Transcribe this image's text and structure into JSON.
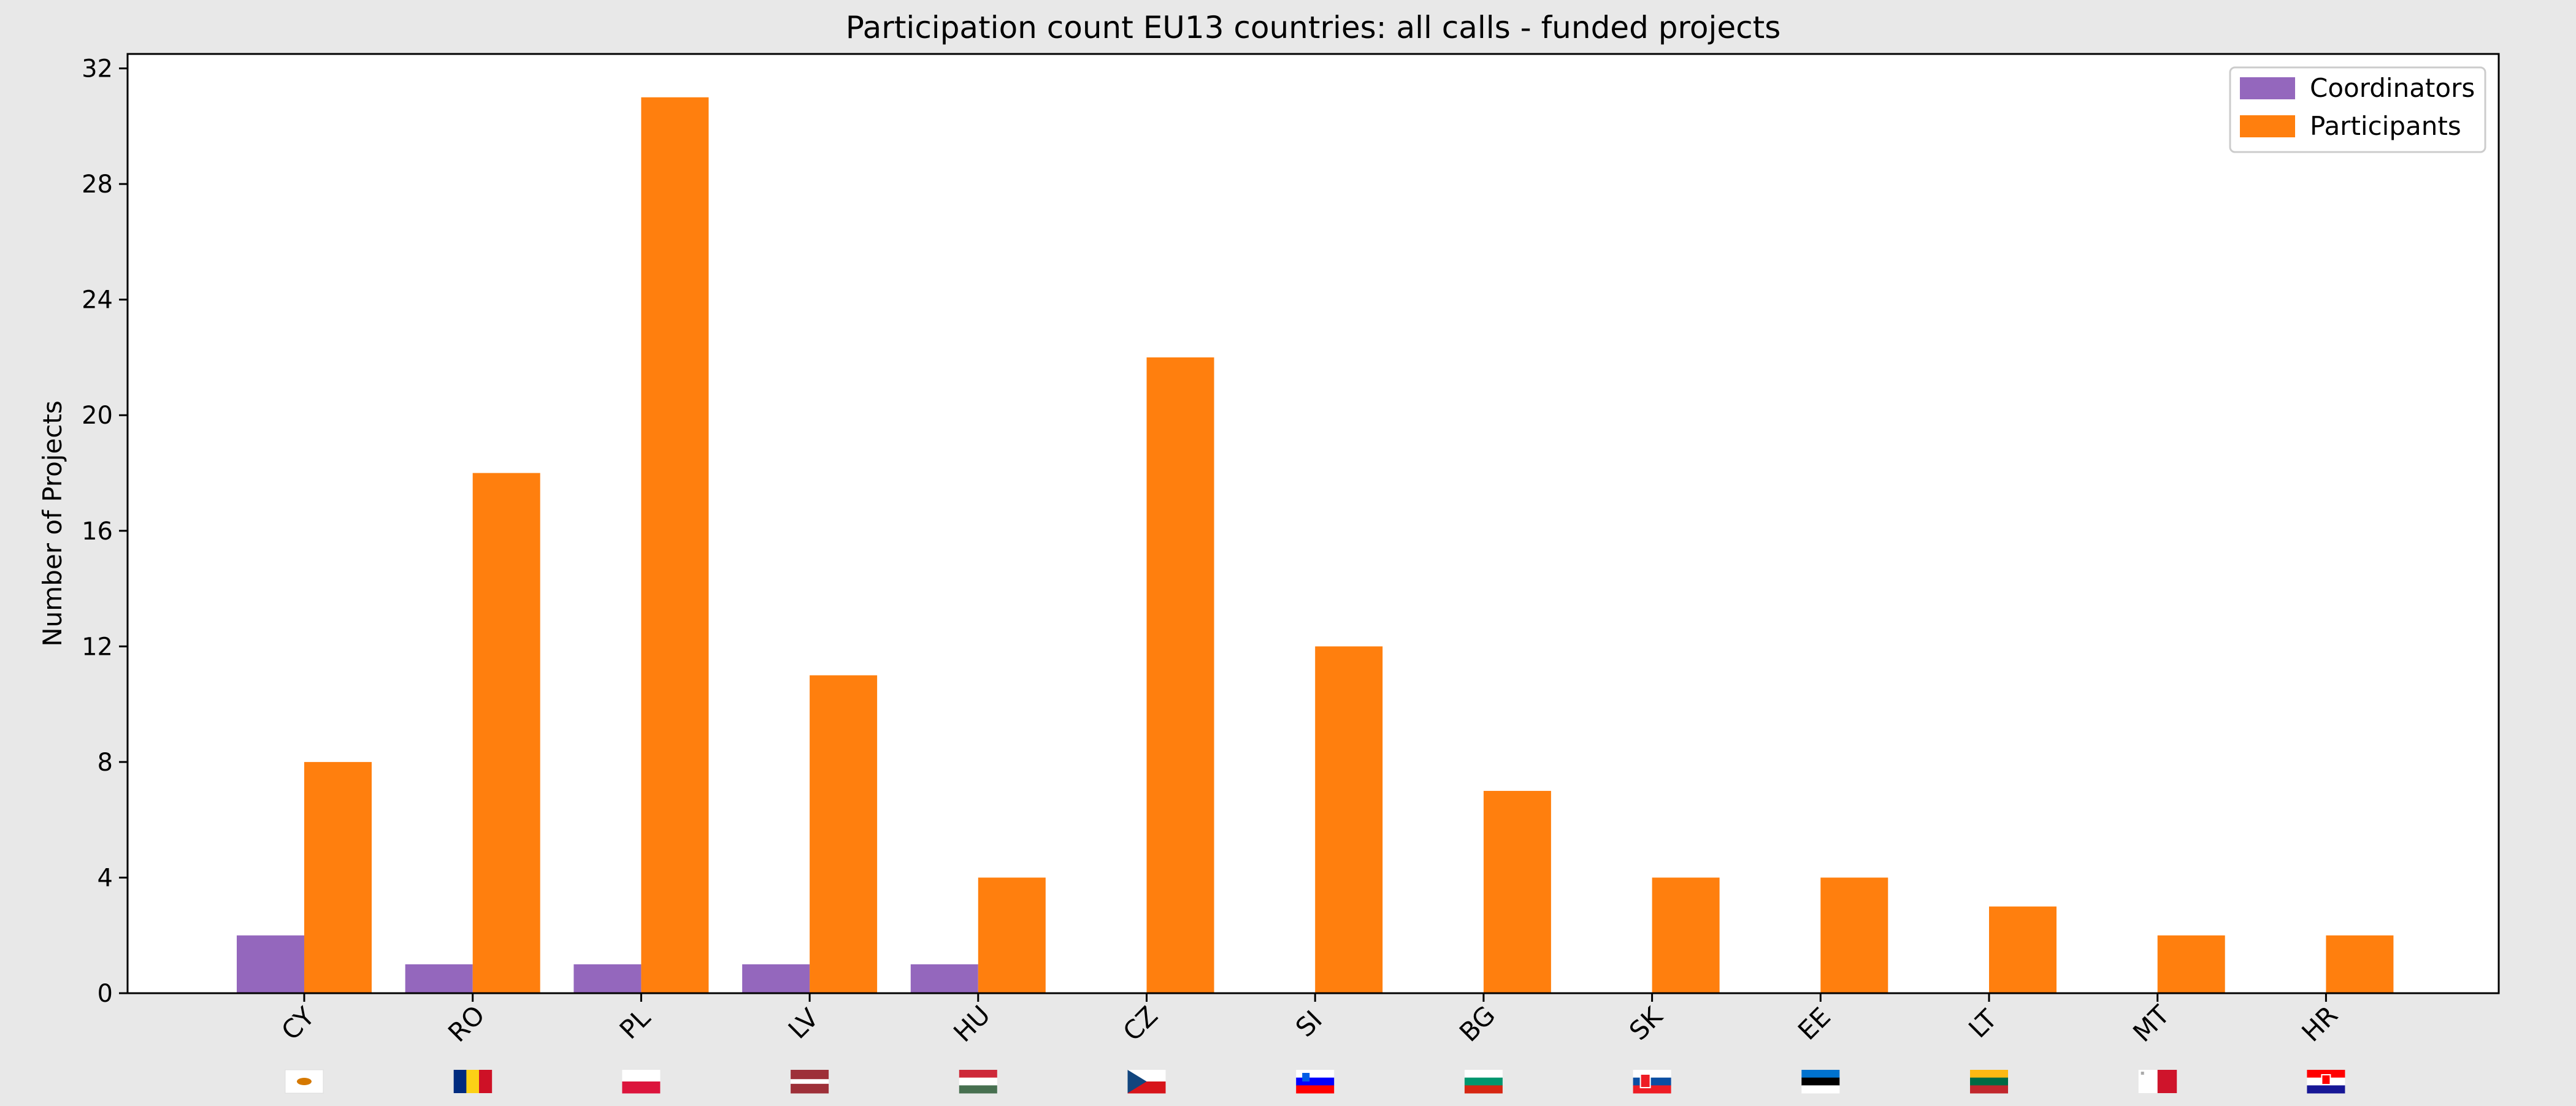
{
  "chart_data": {
    "type": "bar",
    "title": "Participation count EU13 countries: all calls - funded projects",
    "xlabel": "",
    "ylabel": "Number of Projects",
    "ylim": [
      0,
      32.5
    ],
    "yticks": [
      0,
      4,
      8,
      12,
      16,
      20,
      24,
      28,
      32
    ],
    "grid": false,
    "legend_position": "top-right",
    "categories": [
      "CY",
      "RO",
      "PL",
      "LV",
      "HU",
      "CZ",
      "SI",
      "BG",
      "SK",
      "EE",
      "LT",
      "MT",
      "HR"
    ],
    "series": [
      {
        "name": "Coordinators",
        "color": "#9467bd",
        "values": [
          2,
          1,
          1,
          1,
          1,
          0,
          0,
          0,
          0,
          0,
          0,
          0,
          0
        ]
      },
      {
        "name": "Participants",
        "color": "#ff7f0e",
        "values": [
          8,
          18,
          31,
          11,
          4,
          22,
          12,
          7,
          4,
          4,
          3,
          2,
          2
        ]
      }
    ],
    "flag_icons": [
      "cyprus-flag-icon",
      "romania-flag-icon",
      "poland-flag-icon",
      "latvia-flag-icon",
      "hungary-flag-icon",
      "czechia-flag-icon",
      "slovenia-flag-icon",
      "bulgaria-flag-icon",
      "slovakia-flag-icon",
      "estonia-flag-icon",
      "lithuania-flag-icon",
      "malta-flag-icon",
      "croatia-flag-icon"
    ]
  }
}
